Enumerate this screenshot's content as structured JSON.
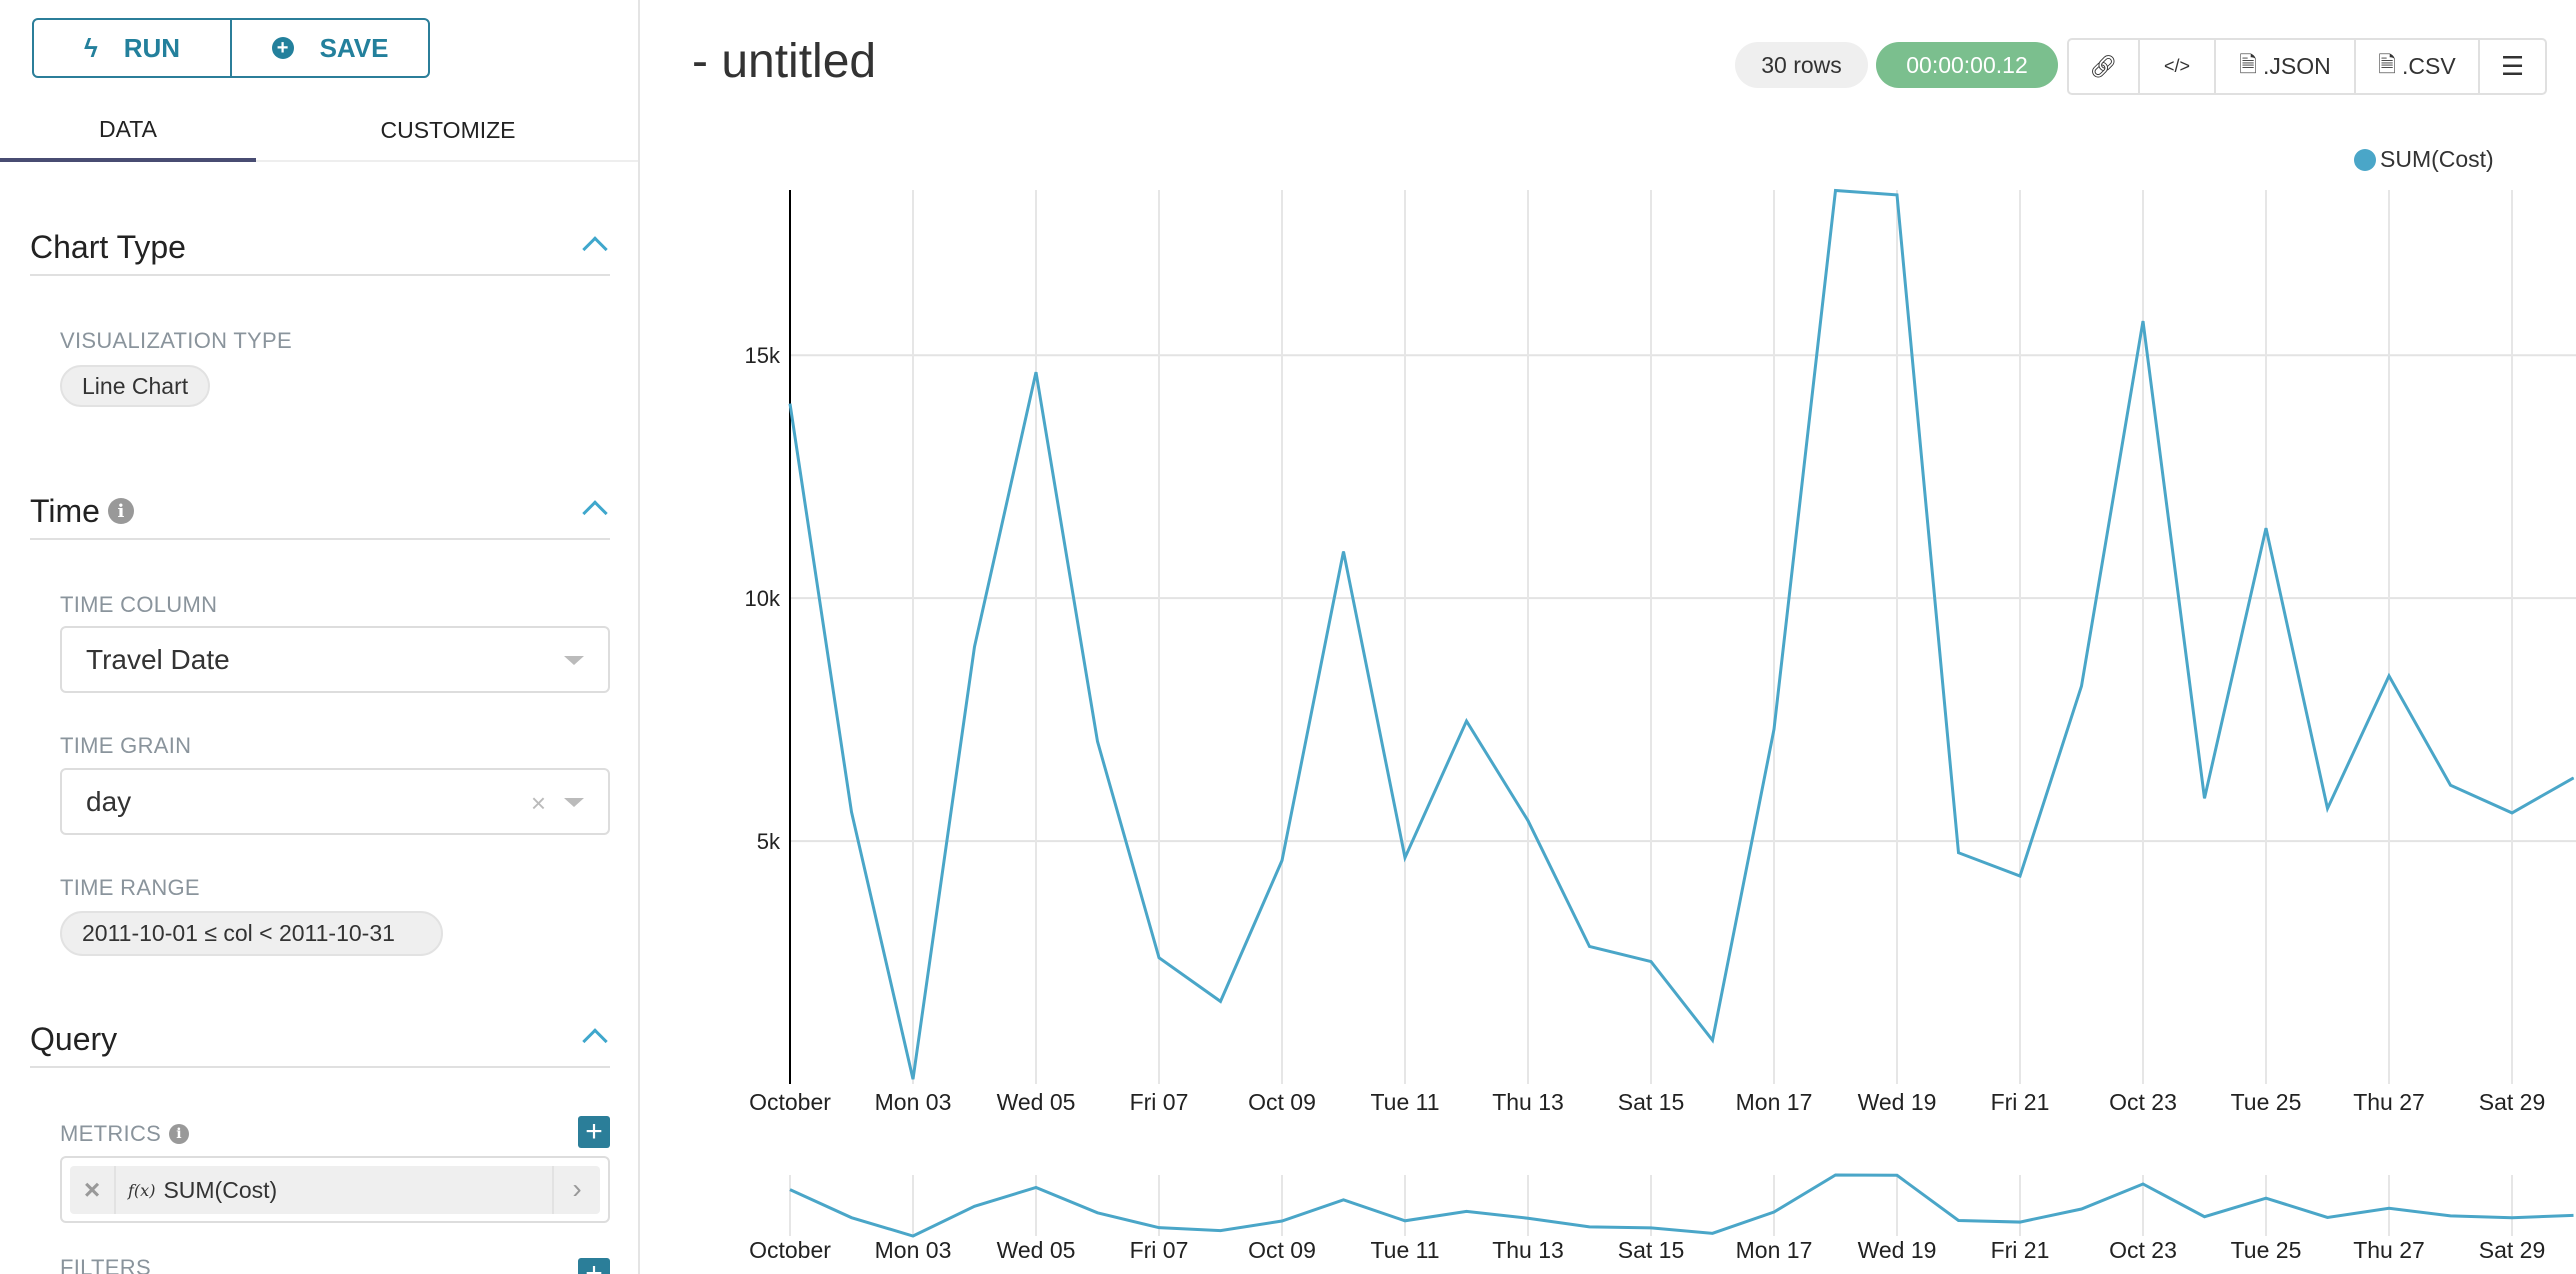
{
  "toolbar": {
    "run_label": "RUN",
    "save_label": "SAVE"
  },
  "tabs": [
    {
      "label": "DATA",
      "active": true
    },
    {
      "label": "CUSTOMIZE",
      "active": false
    }
  ],
  "sections": {
    "chart_type": {
      "title": "Chart Type",
      "viz_label": "VISUALIZATION TYPE",
      "viz_value": "Line Chart"
    },
    "time": {
      "title": "Time",
      "time_column_label": "TIME COLUMN",
      "time_column_value": "Travel Date",
      "time_grain_label": "TIME GRAIN",
      "time_grain_value": "day",
      "time_range_label": "TIME RANGE",
      "time_range_value": "2011-10-01 ≤ col < 2011-10-31"
    },
    "query": {
      "title": "Query",
      "metrics_label": "METRICS",
      "metric_fx": "f(x)",
      "metric_value": "SUM(Cost)",
      "filters_label": "FILTERS"
    }
  },
  "header": {
    "title": "- untitled",
    "rows": "30 rows",
    "timer": "00:00:00.12",
    "json_label": ".JSON",
    "csv_label": ".CSV"
  },
  "colors": {
    "accent": "#2b7e99",
    "line": "#4aa6c8",
    "timer_bg": "#7bbf8e",
    "tab_underline": "#484c72"
  },
  "chart_data": {
    "type": "line",
    "series": [
      {
        "name": "SUM(Cost)",
        "values": [
          14000,
          5600,
          100,
          9000,
          14650,
          7050,
          2600,
          1700,
          4600,
          10960,
          4660,
          7470,
          5420,
          2830,
          2520,
          900,
          7300,
          18390,
          18300,
          4760,
          4280,
          8190,
          15700,
          5880,
          11440,
          5670,
          8400,
          6150,
          5580,
          6300
        ]
      }
    ],
    "x": [
      "2011-10-01",
      "2011-10-02",
      "2011-10-03",
      "2011-10-04",
      "2011-10-05",
      "2011-10-06",
      "2011-10-07",
      "2011-10-08",
      "2011-10-09",
      "2011-10-10",
      "2011-10-11",
      "2011-10-12",
      "2011-10-13",
      "2011-10-14",
      "2011-10-15",
      "2011-10-16",
      "2011-10-17",
      "2011-10-18",
      "2011-10-19",
      "2011-10-20",
      "2011-10-21",
      "2011-10-22",
      "2011-10-23",
      "2011-10-24",
      "2011-10-25",
      "2011-10-26",
      "2011-10-27",
      "2011-10-28",
      "2011-10-29",
      "2011-10-30"
    ],
    "x_tick_labels": [
      "October",
      "Mon 03",
      "Wed 05",
      "Fri 07",
      "Oct 09",
      "Tue 11",
      "Thu 13",
      "Sat 15",
      "Mon 17",
      "Wed 19",
      "Fri 21",
      "Oct 23",
      "Tue 25",
      "Thu 27",
      "Sat 29"
    ],
    "y_ticks": [
      5000,
      10000,
      15000
    ],
    "y_tick_labels": [
      "5k",
      "10k",
      "15k"
    ],
    "ylim": [
      0,
      18400
    ],
    "grid": true,
    "legend": "top-right",
    "has_overview_brush": true
  }
}
